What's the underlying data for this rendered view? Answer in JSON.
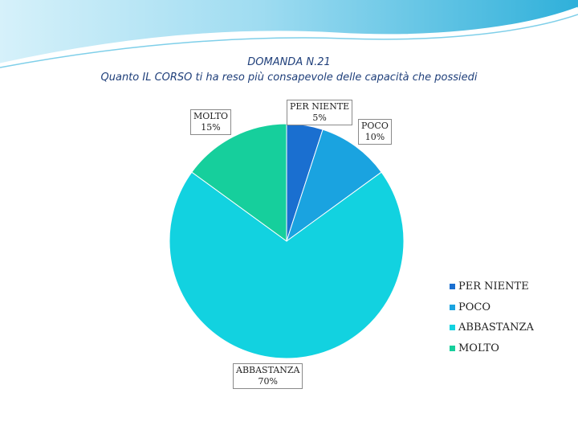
{
  "colors": {
    "wave_dark": "#2aa9d6",
    "wave_light": "#bfe8f6",
    "title": "#1f3f7a"
  },
  "chart_data": {
    "type": "pie",
    "title": "DOMANDA N.21",
    "subtitle": "Quanto IL CORSO ti ha reso più consapevole delle capacità che possiedi",
    "categories": [
      "PER NIENTE",
      "POCO",
      "ABBASTANZA",
      "MOLTO"
    ],
    "values": [
      5,
      10,
      70,
      15
    ],
    "value_labels": [
      "5%",
      "10%",
      "70%",
      "15%"
    ],
    "colors": [
      "#1a6fd0",
      "#1aa3e0",
      "#12d2e0",
      "#16cf9c"
    ],
    "legend_position": "right",
    "start_angle_deg": 0,
    "direction": "clockwise"
  }
}
